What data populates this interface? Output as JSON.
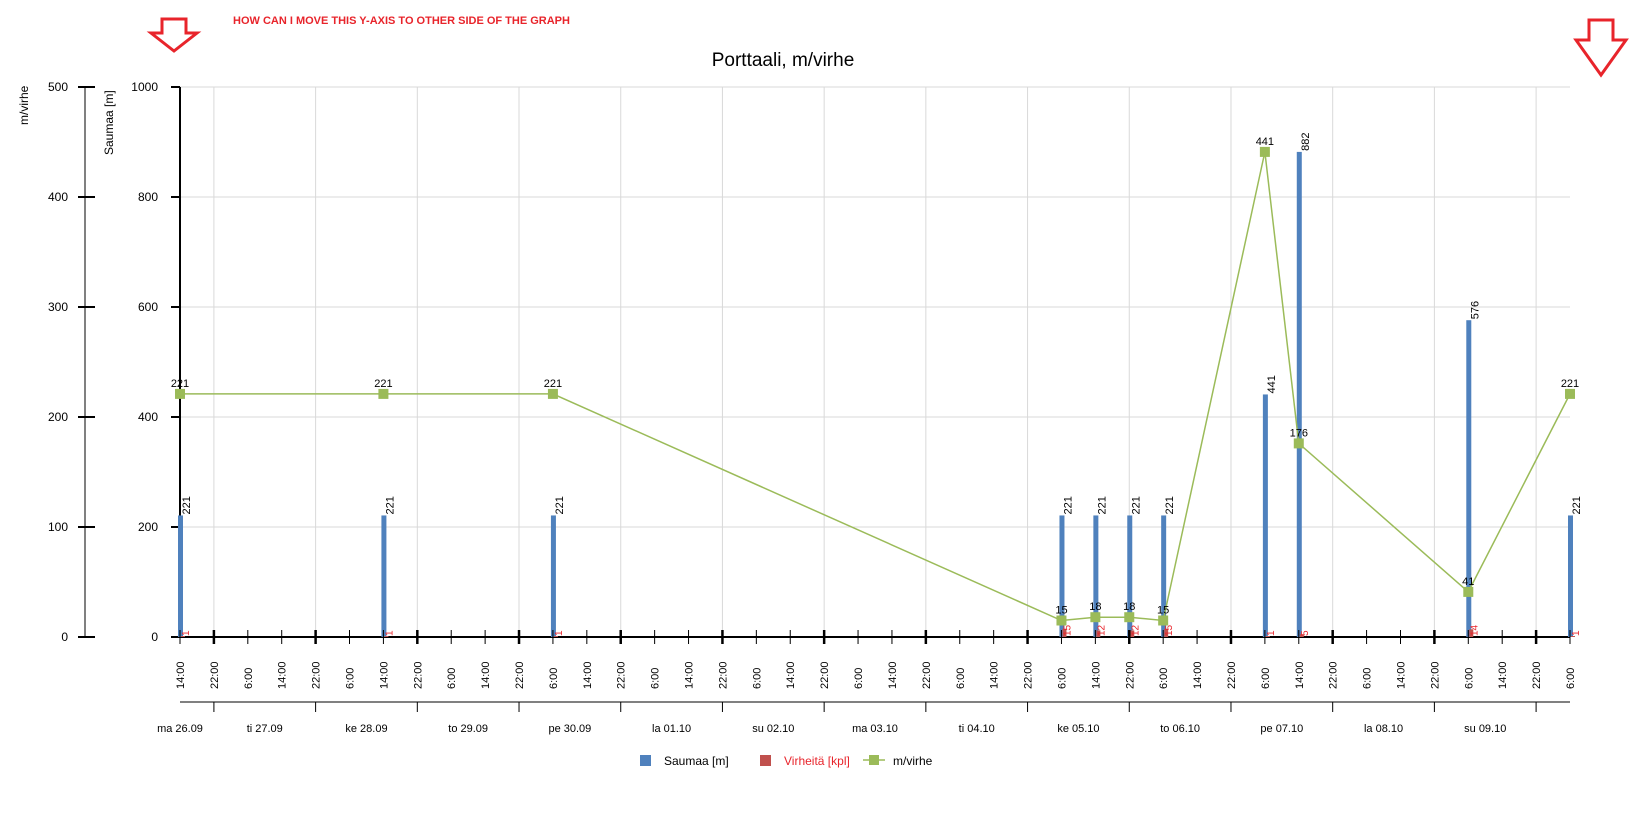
{
  "annotation": {
    "text": "HOW CAN I MOVE THIS Y-AXIS TO OTHER SIDE OF THE GRAPH",
    "color": "#e8242b",
    "arrows": [
      "down-arrow-icon",
      "down-arrow-icon"
    ]
  },
  "chart_data": {
    "type": "bar",
    "title": "Porttaali, m/virhe",
    "y_left_outer": {
      "label": "m/virhe",
      "range": [
        0,
        500
      ],
      "ticks": [
        "0",
        "100",
        "200",
        "300",
        "400",
        "500"
      ]
    },
    "y_left_inner": {
      "label": "Saumaa [m]",
      "range": [
        0,
        1000
      ],
      "ticks": [
        "0",
        "200",
        "400",
        "600",
        "800",
        "1000"
      ]
    },
    "x_axis": {
      "start": "2011-09-26 14:00",
      "end": "2011-10-10 06:00",
      "time_ticks": [
        "14:00",
        "22:00",
        "6:00",
        "14:00",
        "22:00",
        "6:00",
        "14:00",
        "22:00",
        "6:00",
        "14:00",
        "22:00",
        "6:00",
        "14:00",
        "22:00",
        "6:00",
        "14:00",
        "22:00",
        "6:00",
        "14:00",
        "22:00",
        "6:00",
        "14:00",
        "22:00",
        "6:00",
        "14:00",
        "22:00",
        "6:00",
        "14:00",
        "22:00",
        "6:00",
        "14:00",
        "22:00",
        "6:00",
        "14:00",
        "22:00",
        "6:00",
        "14:00",
        "22:00",
        "6:00",
        "14:00",
        "22:00",
        "6:00"
      ],
      "day_labels": [
        "ma 26.09",
        "ti 27.09",
        "ke 28.09",
        "to 29.09",
        "pe 30.09",
        "la 01.10",
        "su 02.10",
        "ma 03.10",
        "ti 04.10",
        "ke 05.10",
        "to 06.10",
        "pe 07.10",
        "la 08.10",
        "su 09.10"
      ]
    },
    "legend": [
      {
        "name": "Saumaa [m]",
        "color": "#4f81bd",
        "label_color": "#000000",
        "marker": "square"
      },
      {
        "name": "Virheitä [kpl]",
        "color": "#c0504d",
        "label_color": "#e8242b",
        "marker": "square"
      },
      {
        "name": "m/virhe",
        "color": "#9bbb59",
        "label_color": "#000000",
        "marker": "line-square"
      }
    ],
    "legend_position": "bottom-center",
    "grid": true,
    "colors": {
      "saumaa": "#4f81bd",
      "virheita": "#c0504d",
      "mvirhe": "#9bbb59"
    },
    "series": [
      {
        "name": "Saumaa [m]",
        "axis": "y_left_inner",
        "points": [
          {
            "x": "2011-09-26 14:00",
            "value": 221,
            "label": "221"
          },
          {
            "x": "2011-09-28 14:00",
            "value": 221,
            "label": "221"
          },
          {
            "x": "2011-09-30 06:00",
            "value": 221,
            "label": "221"
          },
          {
            "x": "2011-10-05 06:00",
            "value": 221,
            "label": "221"
          },
          {
            "x": "2011-10-05 14:00",
            "value": 221,
            "label": "221"
          },
          {
            "x": "2011-10-05 22:00",
            "value": 221,
            "label": "221"
          },
          {
            "x": "2011-10-06 06:00",
            "value": 221,
            "label": "221"
          },
          {
            "x": "2011-10-07 06:00",
            "value": 441,
            "label": "441"
          },
          {
            "x": "2011-10-07 14:00",
            "value": 882,
            "label": "882"
          },
          {
            "x": "2011-10-09 06:00",
            "value": 576,
            "label": "576"
          },
          {
            "x": "2011-10-10 06:00",
            "value": 221,
            "label": "221"
          }
        ]
      },
      {
        "name": "Virheitä [kpl]",
        "axis": "y_left_inner",
        "points": [
          {
            "x": "2011-09-26 14:00",
            "value": 1,
            "label": "1"
          },
          {
            "x": "2011-09-28 14:00",
            "value": 1,
            "label": "1"
          },
          {
            "x": "2011-09-30 06:00",
            "value": 1,
            "label": "1"
          },
          {
            "x": "2011-10-05 06:00",
            "value": 15,
            "label": "15"
          },
          {
            "x": "2011-10-05 14:00",
            "value": 12,
            "label": "12"
          },
          {
            "x": "2011-10-05 22:00",
            "value": 12,
            "label": "12"
          },
          {
            "x": "2011-10-06 06:00",
            "value": 15,
            "label": "15"
          },
          {
            "x": "2011-10-07 06:00",
            "value": 1,
            "label": "1"
          },
          {
            "x": "2011-10-07 14:00",
            "value": 5,
            "label": "5"
          },
          {
            "x": "2011-10-09 06:00",
            "value": 14,
            "label": "14"
          },
          {
            "x": "2011-10-10 06:00",
            "value": 1,
            "label": "1"
          }
        ]
      },
      {
        "name": "m/virhe",
        "axis": "y_left_outer",
        "points": [
          {
            "x": "2011-09-26 14:00",
            "value": 221,
            "label": "221"
          },
          {
            "x": "2011-09-28 14:00",
            "value": 221,
            "label": "221"
          },
          {
            "x": "2011-09-30 06:00",
            "value": 221,
            "label": "221"
          },
          {
            "x": "2011-10-05 06:00",
            "value": 15,
            "label": "15"
          },
          {
            "x": "2011-10-05 14:00",
            "value": 18,
            "label": "18"
          },
          {
            "x": "2011-10-05 22:00",
            "value": 18,
            "label": "18"
          },
          {
            "x": "2011-10-06 06:00",
            "value": 15,
            "label": "15"
          },
          {
            "x": "2011-10-07 06:00",
            "value": 441,
            "label": "441"
          },
          {
            "x": "2011-10-07 14:00",
            "value": 176,
            "label": "176"
          },
          {
            "x": "2011-10-09 06:00",
            "value": 41,
            "label": "41"
          },
          {
            "x": "2011-10-10 06:00",
            "value": 221,
            "label": "221"
          }
        ]
      }
    ]
  }
}
